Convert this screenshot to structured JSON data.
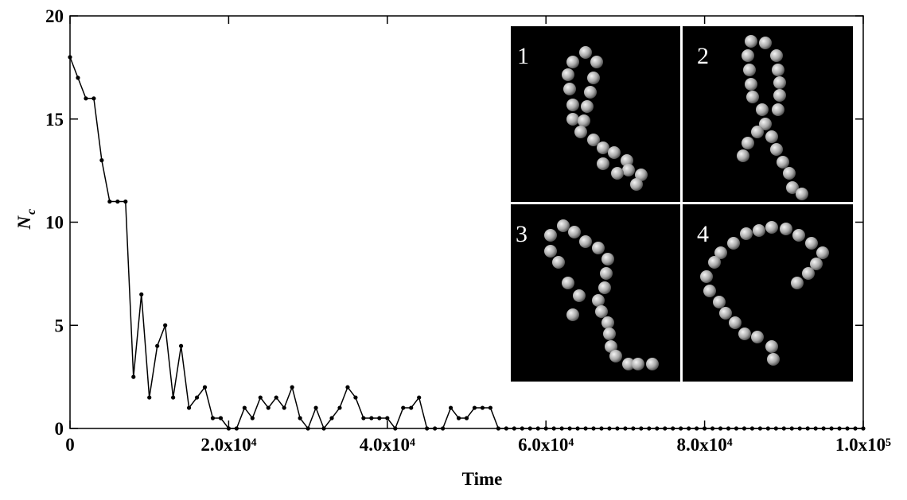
{
  "chart_data": {
    "type": "line",
    "xlabel": "Time",
    "ylabel": {
      "main": "N",
      "sub": "c"
    },
    "inset_labels": [
      "1",
      "2",
      "3",
      "4"
    ],
    "xlim": [
      0,
      100000
    ],
    "ylim": [
      0,
      20
    ],
    "xticks": [
      0,
      {
        "value": 20000,
        "label": "2.0x10⁴"
      },
      {
        "value": 40000,
        "label": "4.0x10⁴"
      },
      {
        "value": 60000,
        "label": "6.0x10⁴"
      },
      {
        "value": 80000,
        "label": "8.0x10⁴"
      },
      {
        "value": 100000,
        "label": "1.0x10⁵"
      }
    ],
    "yticks": [
      0,
      5,
      10,
      15,
      20
    ],
    "color": "#000000",
    "x": [
      0,
      1000,
      2000,
      3000,
      4000,
      5000,
      6000,
      7000,
      8000,
      9000,
      10000,
      11000,
      12000,
      13000,
      14000,
      15000,
      16000,
      17000,
      18000,
      19000,
      20000,
      21000,
      22000,
      23000,
      24000,
      25000,
      26000,
      27000,
      28000,
      29000,
      30000,
      31000,
      32000,
      33000,
      34000,
      35000,
      36000,
      37000,
      38000,
      39000,
      40000,
      41000,
      42000,
      43000,
      44000,
      45000,
      46000,
      47000,
      48000,
      49000,
      50000,
      51000,
      52000,
      53000,
      54000,
      55000,
      56000,
      57000,
      58000,
      59000,
      60000,
      61000,
      62000,
      63000,
      64000,
      65000,
      66000,
      67000,
      68000,
      69000,
      70000,
      71000,
      72000,
      73000,
      74000,
      75000,
      76000,
      77000,
      78000,
      79000,
      80000,
      81000,
      82000,
      83000,
      84000,
      85000,
      86000,
      87000,
      88000,
      89000,
      90000,
      91000,
      92000,
      93000,
      94000,
      95000,
      96000,
      97000,
      98000,
      99000,
      100000
    ],
    "values": [
      18,
      17,
      16,
      16,
      13,
      11,
      11,
      11,
      2.5,
      6.5,
      1.5,
      4,
      5,
      1.5,
      4,
      1,
      1.5,
      2,
      0.5,
      0.5,
      0,
      0,
      1,
      0.5,
      1.5,
      1,
      1.5,
      1,
      2,
      0.5,
      0,
      1,
      0,
      0.5,
      1,
      2,
      1.5,
      0.5,
      0.5,
      0.5,
      0.5,
      0,
      1,
      1,
      1.5,
      0,
      0,
      0,
      1,
      0.5,
      0.5,
      1,
      1,
      1,
      0,
      0,
      0,
      0,
      0,
      0,
      0,
      0,
      0,
      0,
      0,
      0,
      0,
      0,
      0,
      0,
      0,
      0,
      0,
      0,
      0,
      0,
      0,
      0,
      0,
      0,
      0,
      0,
      0,
      0,
      0,
      0,
      0,
      0,
      0,
      0,
      0,
      0,
      0,
      0,
      0,
      0,
      0,
      0,
      0,
      0,
      0
    ]
  }
}
